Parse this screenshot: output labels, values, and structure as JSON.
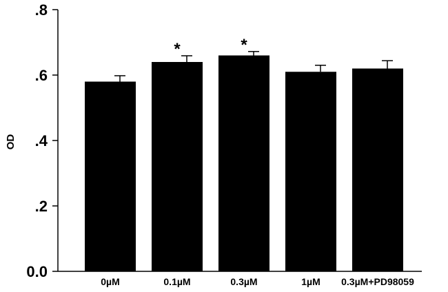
{
  "chart_data": {
    "type": "bar",
    "title": "",
    "xlabel": "",
    "ylabel": "OD",
    "ylim": [
      0,
      0.8
    ],
    "yticks": [
      0,
      0.2,
      0.4,
      0.6,
      0.8
    ],
    "ytick_labels": [
      "0.0",
      ".2",
      ".4",
      ".6",
      ".8"
    ],
    "categories": [
      "0µM",
      "0.1µM",
      "0.3µM",
      "1µM",
      "0.3µM+PD98059"
    ],
    "values": [
      0.58,
      0.64,
      0.66,
      0.61,
      0.62
    ],
    "errors": [
      0.018,
      0.019,
      0.012,
      0.02,
      0.024
    ],
    "significance": [
      "",
      "*",
      "*",
      "",
      ""
    ],
    "bar_color": "#000000",
    "grid": false,
    "legend": "none"
  }
}
